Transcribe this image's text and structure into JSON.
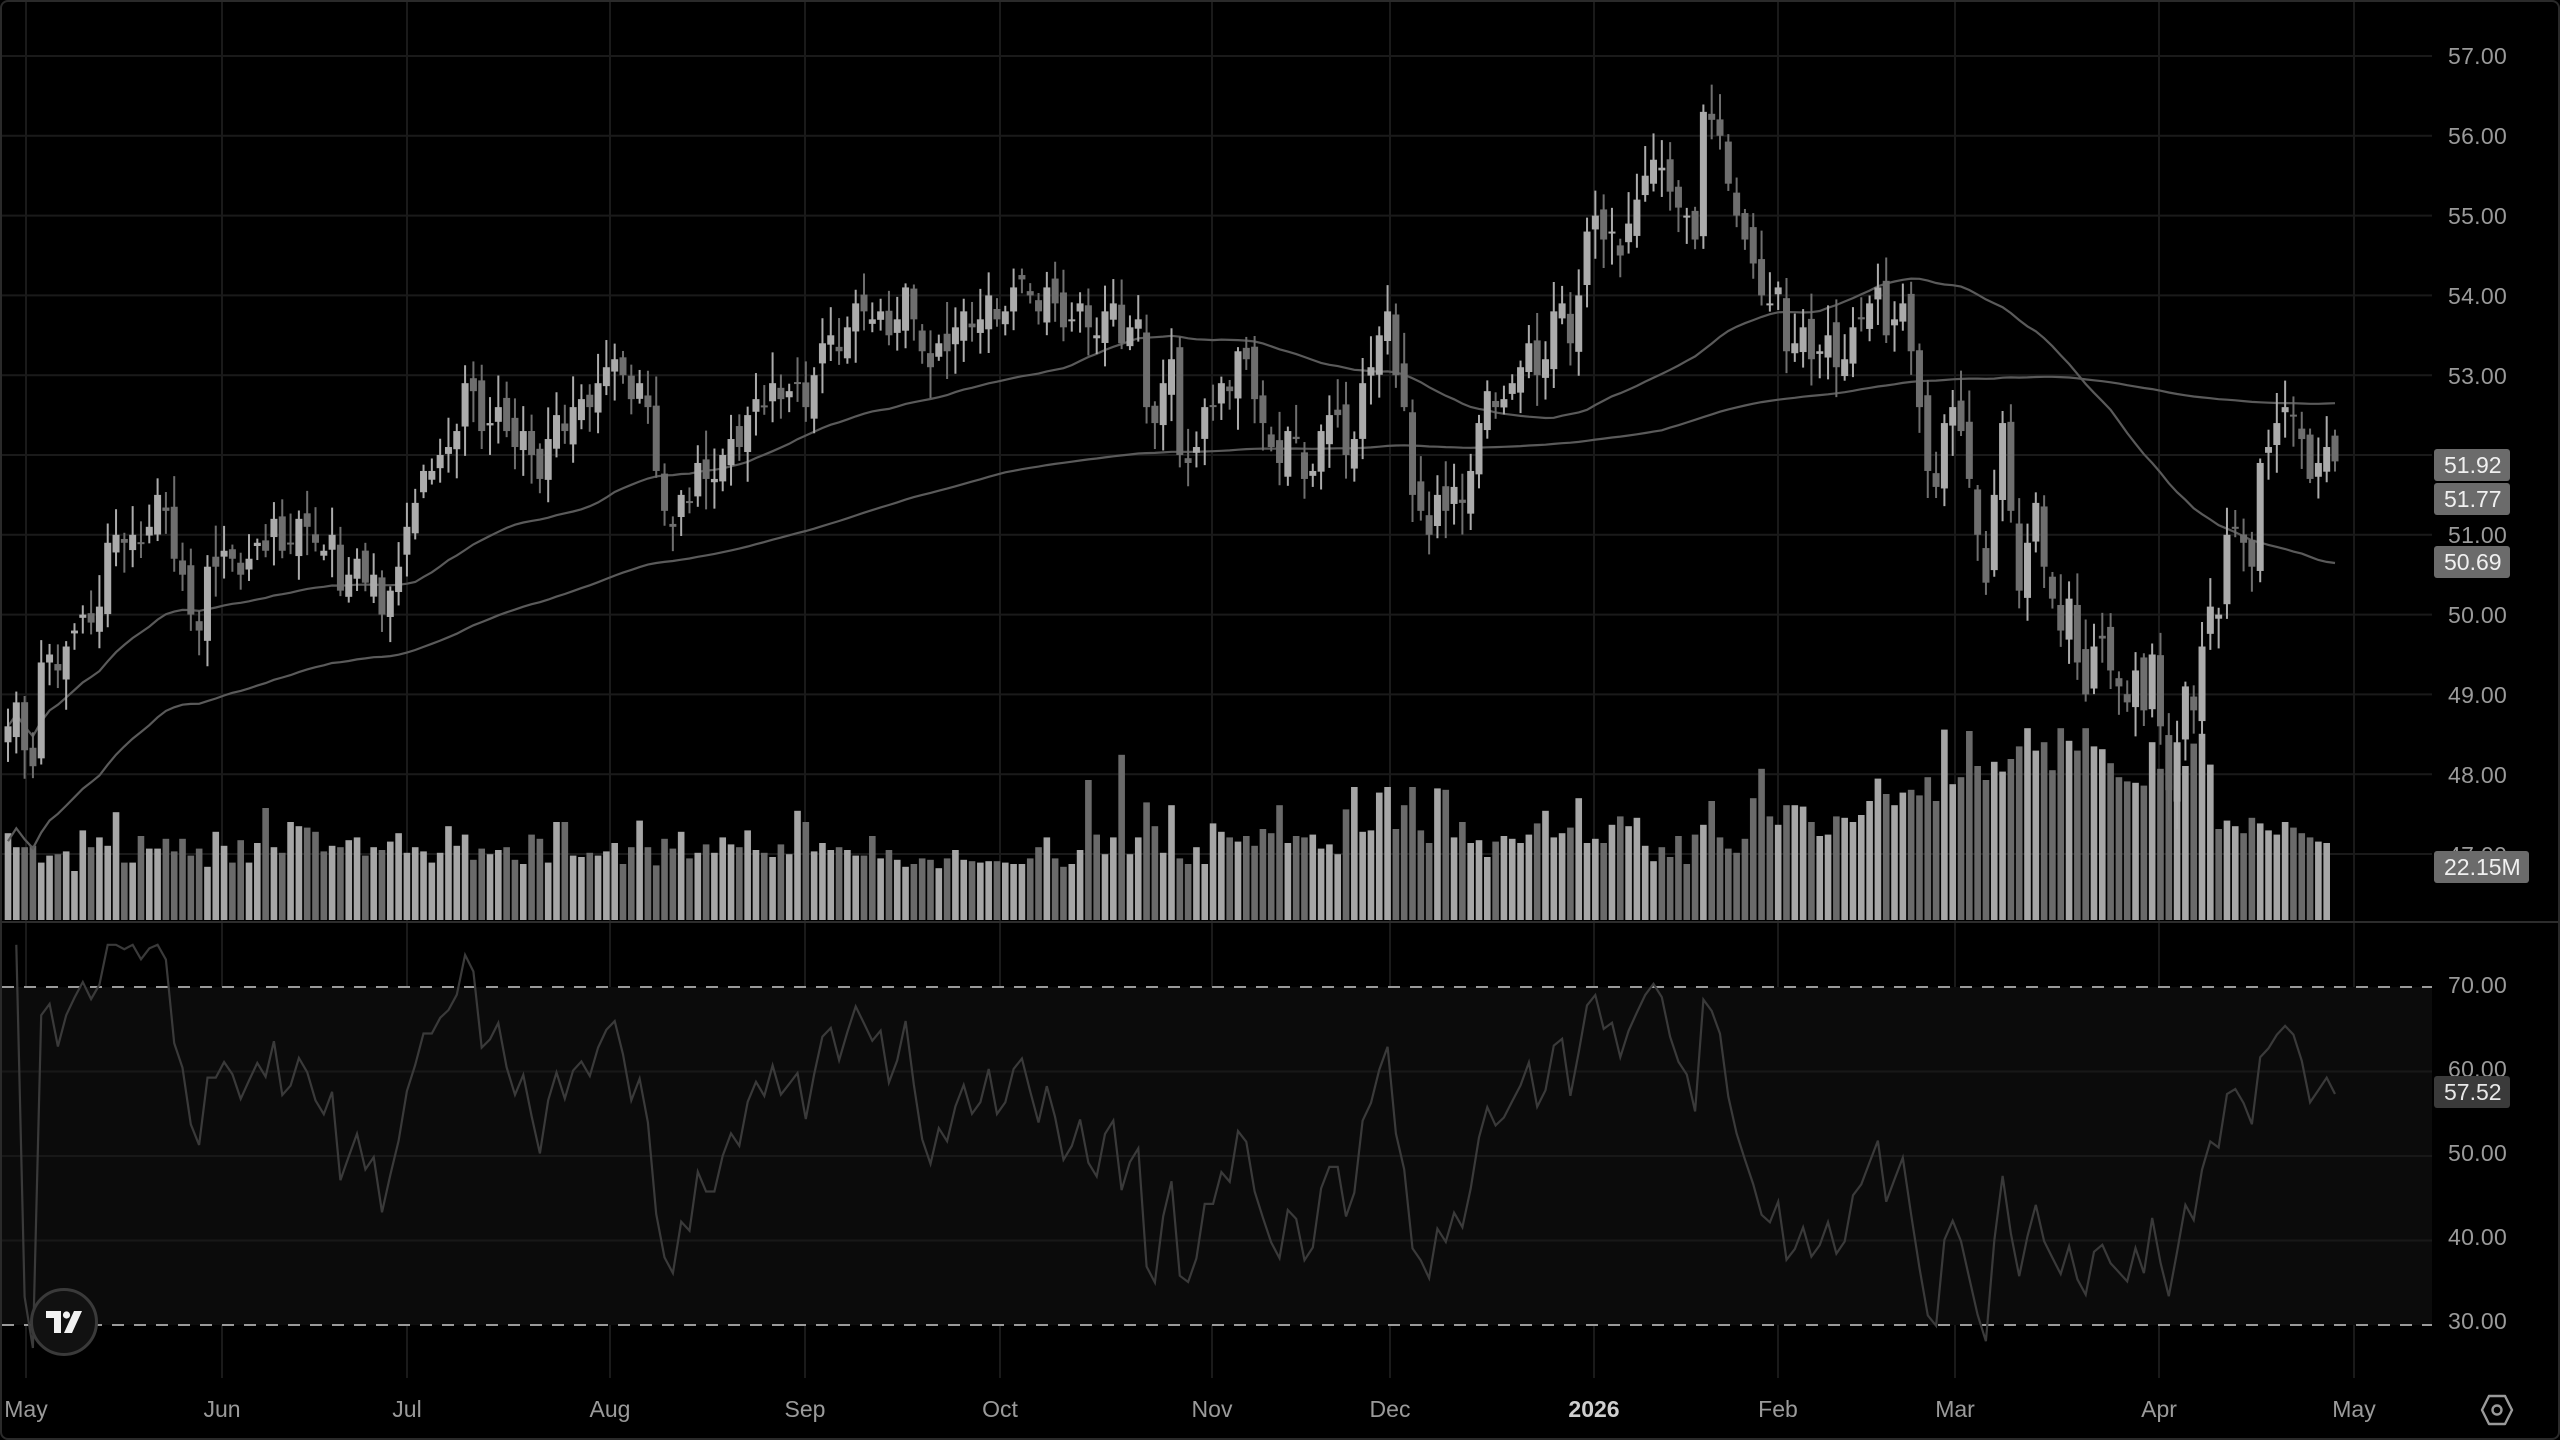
{
  "chart_data": {
    "type": "candlestick",
    "title": "",
    "panes": [
      "price",
      "volume",
      "rsi"
    ],
    "x_axis": {
      "tick_labels": [
        "May",
        "Jun",
        "Jul",
        "Aug",
        "Sep",
        "Oct",
        "Nov",
        "Dec",
        "2026",
        "Feb",
        "Mar",
        "Apr",
        "May"
      ],
      "tick_x": [
        24,
        220,
        405,
        608,
        803,
        998,
        1210,
        1388,
        1592,
        1776,
        1953,
        2157,
        2352
      ]
    },
    "price_axis": {
      "tick_labels": [
        "57.00",
        "56.00",
        "55.00",
        "54.00",
        "53.00",
        "51.00",
        "50.00",
        "49.00",
        "48.00",
        "47.00"
      ],
      "range": [
        46.6,
        57.4
      ],
      "last_price_labels": {
        "close": "51.92",
        "sma_fast": "51.77",
        "sma_slow": "50.69"
      }
    },
    "volume": {
      "last_label": "22.15M"
    },
    "rsi_axis": {
      "tick_labels": [
        "70.00",
        "60.00",
        "50.00",
        "40.00",
        "30.00"
      ],
      "upper_band": 70,
      "lower_band": 30,
      "last_label": "57.52"
    },
    "closes": [
      48.6,
      48.9,
      48.3,
      48.1,
      49.4,
      49.5,
      49.3,
      49.6,
      49.8,
      50.0,
      49.9,
      50.1,
      50.9,
      51.0,
      50.9,
      51.0,
      50.9,
      51.1,
      51.5,
      51.3,
      50.7,
      50.5,
      50.0,
      49.8,
      50.6,
      50.6,
      50.8,
      50.7,
      50.5,
      50.7,
      50.9,
      50.8,
      51.2,
      50.8,
      50.9,
      51.2,
      51.1,
      50.9,
      50.8,
      51.0,
      50.3,
      50.5,
      50.7,
      50.4,
      50.5,
      50.0,
      50.3,
      50.6,
      51.1,
      51.4,
      51.8,
      51.8,
      52.0,
      52.1,
      52.3,
      52.9,
      52.8,
      52.3,
      52.4,
      52.6,
      52.3,
      52.1,
      52.3,
      52.0,
      51.7,
      52.2,
      52.5,
      52.3,
      52.6,
      52.7,
      52.6,
      52.9,
      53.1,
      53.2,
      53.0,
      52.7,
      52.9,
      52.6,
      51.8,
      51.3,
      51.1,
      51.5,
      51.4,
      51.9,
      51.7,
      51.7,
      52.0,
      52.2,
      52.1,
      52.5,
      52.7,
      52.6,
      52.9,
      52.7,
      52.8,
      52.9,
      52.6,
      53.0,
      53.4,
      53.5,
      53.3,
      53.6,
      53.9,
      53.8,
      53.7,
      53.8,
      53.5,
      53.7,
      54.1,
      53.7,
      53.3,
      53.1,
      53.4,
      53.3,
      53.6,
      53.8,
      53.6,
      53.7,
      54.0,
      53.7,
      53.8,
      54.1,
      54.2,
      54.0,
      53.8,
      54.1,
      53.9,
      53.6,
      53.7,
      53.9,
      53.6,
      53.5,
      53.8,
      53.9,
      53.4,
      53.6,
      53.7,
      52.6,
      52.4,
      52.9,
      53.2,
      52.0,
      51.9,
      52.1,
      52.6,
      52.6,
      52.9,
      52.8,
      53.3,
      53.2,
      52.7,
      52.4,
      52.1,
      51.9,
      52.3,
      52.2,
      51.7,
      51.8,
      52.3,
      52.5,
      52.5,
      52.0,
      52.2,
      52.9,
      53.1,
      53.5,
      53.8,
      53.0,
      52.6,
      51.5,
      51.3,
      51.0,
      51.5,
      51.3,
      51.6,
      51.4,
      51.8,
      52.4,
      52.8,
      52.6,
      52.7,
      52.9,
      53.1,
      53.4,
      53.0,
      53.2,
      53.8,
      53.9,
      53.4,
      54.0,
      54.8,
      55.0,
      54.7,
      54.8,
      54.5,
      54.9,
      55.2,
      55.5,
      55.7,
      55.6,
      55.3,
      55.1,
      55.0,
      54.7,
      56.3,
      56.2,
      56.0,
      55.4,
      55.0,
      54.7,
      54.4,
      54.0,
      53.9,
      54.1,
      53.3,
      53.4,
      53.6,
      53.2,
      53.3,
      53.5,
      53.1,
      53.2,
      53.6,
      53.7,
      53.9,
      54.1,
      53.5,
      53.7,
      53.9,
      53.3,
      52.6,
      51.8,
      51.6,
      52.4,
      52.6,
      52.3,
      51.7,
      51.0,
      50.4,
      51.5,
      52.4,
      51.3,
      50.3,
      50.9,
      51.4,
      50.6,
      50.2,
      49.8,
      50.2,
      49.4,
      49.0,
      49.6,
      49.7,
      49.3,
      49.1,
      48.9,
      49.3,
      48.8,
      49.5,
      48.6,
      47.8,
      48.4,
      49.1,
      48.8,
      49.6,
      50.1,
      50.0,
      51.0,
      51.1,
      50.9,
      50.6,
      51.9,
      52.1,
      52.4,
      52.6,
      52.5,
      52.2,
      51.7,
      51.9,
      52.1,
      51.92
    ],
    "volumes_rel": [
      0.62,
      0.52,
      0.52,
      0.53,
      0.41,
      0.46,
      0.47,
      0.49,
      0.35,
      0.64,
      0.52,
      0.59,
      0.53,
      0.77,
      0.41,
      0.41,
      0.6,
      0.51,
      0.51,
      0.58,
      0.49,
      0.58,
      0.46,
      0.51,
      0.38,
      0.63,
      0.53,
      0.41,
      0.57,
      0.41,
      0.55,
      0.8,
      0.52,
      0.48,
      0.7,
      0.67,
      0.66,
      0.63,
      0.49,
      0.53,
      0.52,
      0.57,
      0.59,
      0.46,
      0.52,
      0.5,
      0.56,
      0.62,
      0.48,
      0.52,
      0.49,
      0.41,
      0.48,
      0.67,
      0.53,
      0.61,
      0.43,
      0.51,
      0.47,
      0.5,
      0.52,
      0.43,
      0.4,
      0.61,
      0.58,
      0.41,
      0.7,
      0.7,
      0.46,
      0.45,
      0.48,
      0.46,
      0.49,
      0.55,
      0.4,
      0.52,
      0.71,
      0.52,
      0.39,
      0.58,
      0.51,
      0.63,
      0.44,
      0.48,
      0.54,
      0.48,
      0.59,
      0.54,
      0.52,
      0.64,
      0.5,
      0.48,
      0.45,
      0.54,
      0.47,
      0.78,
      0.7,
      0.49,
      0.55,
      0.5,
      0.52,
      0.5,
      0.46,
      0.46,
      0.6,
      0.44,
      0.5,
      0.43,
      0.38,
      0.4,
      0.44,
      0.43,
      0.37,
      0.44,
      0.5,
      0.43,
      0.42,
      0.41,
      0.42,
      0.42,
      0.41,
      0.4,
      0.4,
      0.44,
      0.52,
      0.59,
      0.44,
      0.38,
      0.4,
      0.5,
      1.0,
      0.61,
      0.47,
      0.59,
      1.18,
      0.47,
      0.59,
      0.84,
      0.67,
      0.48,
      0.82,
      0.44,
      0.4,
      0.52,
      0.4,
      0.69,
      0.63,
      0.59,
      0.56,
      0.6,
      0.53,
      0.65,
      0.62,
      0.82,
      0.55,
      0.6,
      0.59,
      0.61,
      0.51,
      0.54,
      0.47,
      0.79,
      0.95,
      0.63,
      0.64,
      0.91,
      0.95,
      0.65,
      0.82,
      0.95,
      0.64,
      0.55,
      0.94,
      0.93,
      0.59,
      0.7,
      0.55,
      0.57,
      0.45,
      0.56,
      0.6,
      0.58,
      0.55,
      0.61,
      0.69,
      0.78,
      0.59,
      0.62,
      0.66,
      0.87,
      0.55,
      0.58,
      0.55,
      0.68,
      0.74,
      0.67,
      0.73,
      0.53,
      0.42,
      0.52,
      0.45,
      0.6,
      0.4,
      0.61,
      0.68,
      0.85,
      0.59,
      0.51,
      0.48,
      0.58,
      0.87,
      1.08,
      0.74,
      0.68,
      0.82,
      0.82,
      0.81,
      0.7,
      0.6,
      0.61,
      0.74,
      0.73,
      0.7,
      0.75,
      0.85,
      1.01,
      0.9,
      0.82,
      0.91,
      0.93,
      0.89,
      1.02,
      0.85,
      1.36,
      0.97,
      1.02,
      1.35,
      1.1,
      1.0,
      1.13,
      1.06,
      1.15,
      1.24,
      1.37,
      1.21,
      1.27,
      1.07,
      1.37,
      1.28,
      1.21,
      1.37,
      1.24,
      1.22,
      1.12,
      1.02,
      0.99,
      0.98,
      0.96,
      1.27,
      1.08,
      0.97,
      1.04,
      1.1,
      1.26,
      1.33,
      1.11,
      0.65,
      0.71,
      0.67,
      0.62,
      0.73,
      0.69,
      0.64,
      0.61,
      0.7,
      0.66,
      0.62,
      0.59,
      0.56,
      0.55
    ]
  },
  "labels": {
    "price_ticks": [
      "57.00",
      "56.00",
      "55.00",
      "54.00",
      "53.00",
      "51.00",
      "50.00",
      "49.00",
      "48.00",
      "47.00"
    ],
    "rsi_ticks": [
      "70.00",
      "60.00",
      "50.00",
      "40.00",
      "30.00"
    ],
    "x_ticks": [
      "May",
      "Jun",
      "Jul",
      "Aug",
      "Sep",
      "Oct",
      "Nov",
      "Dec",
      "2026",
      "Feb",
      "Mar",
      "Apr",
      "May"
    ],
    "last_close": "51.92",
    "sma_fast_last": "51.77",
    "sma_slow_last": "50.69",
    "volume_last": "22.15M",
    "rsi_last": "57.52"
  },
  "colors": {
    "background": "#000000",
    "grid": "#1a1a1a",
    "candle_up": "#ababab",
    "candle_down": "#6e6e6e",
    "ma_line": "#5a5a5a",
    "rsi_line": "#3a3a3a",
    "rsi_band": "#0b0b0b",
    "band_dash": "#9a9a9a",
    "axis_text": "#9a9a9a"
  },
  "icons": {
    "logo": "tradingview-logo-icon",
    "settings": "settings-hexagon-icon"
  }
}
